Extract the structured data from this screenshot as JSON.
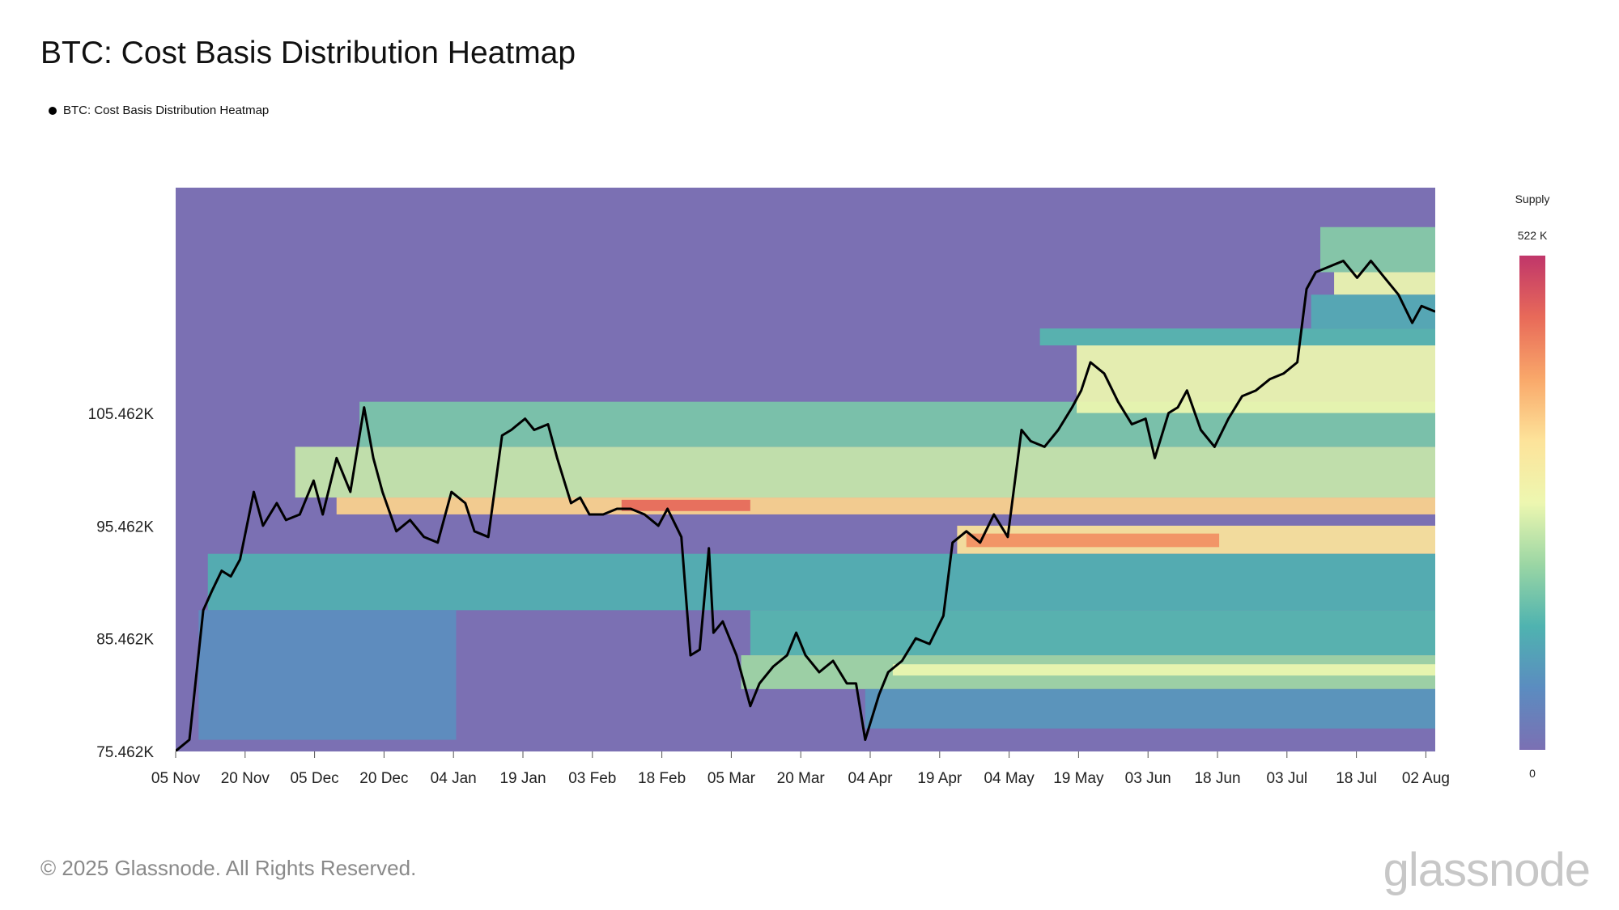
{
  "title": "BTC: Cost Basis Distribution Heatmap",
  "legend": {
    "label": "BTC: Cost Basis Distribution Heatmap",
    "color": "#000000"
  },
  "colorbar": {
    "title": "Supply",
    "max_label": "522 K",
    "min_label": "0",
    "max_value": 522000,
    "min_value": 0,
    "colors": [
      "#7b70b3",
      "#5b8cc0",
      "#4fb3b0",
      "#9bd6a4",
      "#edf7b0",
      "#fde39a",
      "#f9a86a",
      "#e86a59",
      "#c0366a"
    ]
  },
  "footer": {
    "copyright": "© 2025 Glassnode. All Rights Reserved.",
    "brand": "glassnode"
  },
  "chart_data": {
    "type": "heatmap",
    "title": "BTC: Cost Basis Distribution Heatmap",
    "x_ticks": [
      "05 Nov",
      "20 Nov",
      "05 Dec",
      "20 Dec",
      "04 Jan",
      "19 Jan",
      "03 Feb",
      "18 Feb",
      "05 Mar",
      "20 Mar",
      "04 Apr",
      "19 Apr",
      "04 May",
      "19 May",
      "03 Jun",
      "18 Jun",
      "03 Jul",
      "18 Jul",
      "02 Aug"
    ],
    "y_ticks": [
      {
        "label": "75.462K",
        "value": 75462
      },
      {
        "label": "85.462K",
        "value": 85462
      },
      {
        "label": "95.462K",
        "value": 95462
      },
      {
        "label": "105.462K",
        "value": 105462
      }
    ],
    "x_range": [
      "2024-11-05",
      "2025-08-06"
    ],
    "ylim": [
      75462,
      125500
    ],
    "background_color": "#7b70b3",
    "price_series": {
      "name": "BTC: Cost Basis Distribution Heatmap",
      "color": "#000000",
      "x": [
        "2024-11-05",
        "2024-11-08",
        "2024-11-11",
        "2024-11-13",
        "2024-11-15",
        "2024-11-17",
        "2024-11-19",
        "2024-11-22",
        "2024-11-24",
        "2024-11-27",
        "2024-11-29",
        "2024-12-02",
        "2024-12-05",
        "2024-12-07",
        "2024-12-10",
        "2024-12-13",
        "2024-12-16",
        "2024-12-18",
        "2024-12-20",
        "2024-12-23",
        "2024-12-26",
        "2024-12-29",
        "2025-01-01",
        "2025-01-04",
        "2025-01-07",
        "2025-01-09",
        "2025-01-12",
        "2025-01-15",
        "2025-01-17",
        "2025-01-20",
        "2025-01-22",
        "2025-01-25",
        "2025-01-27",
        "2025-01-30",
        "2025-02-01",
        "2025-02-03",
        "2025-02-06",
        "2025-02-09",
        "2025-02-12",
        "2025-02-15",
        "2025-02-18",
        "2025-02-20",
        "2025-02-23",
        "2025-02-25",
        "2025-02-27",
        "2025-03-01",
        "2025-03-02",
        "2025-03-04",
        "2025-03-07",
        "2025-03-10",
        "2025-03-12",
        "2025-03-15",
        "2025-03-18",
        "2025-03-20",
        "2025-03-22",
        "2025-03-25",
        "2025-03-28",
        "2025-03-31",
        "2025-04-02",
        "2025-04-04",
        "2025-04-07",
        "2025-04-09",
        "2025-04-12",
        "2025-04-15",
        "2025-04-18",
        "2025-04-21",
        "2025-04-23",
        "2025-04-26",
        "2025-04-29",
        "2025-05-02",
        "2025-05-05",
        "2025-05-08",
        "2025-05-10",
        "2025-05-13",
        "2025-05-16",
        "2025-05-19",
        "2025-05-21",
        "2025-05-23",
        "2025-05-26",
        "2025-05-29",
        "2025-06-01",
        "2025-06-04",
        "2025-06-06",
        "2025-06-09",
        "2025-06-11",
        "2025-06-13",
        "2025-06-16",
        "2025-06-19",
        "2025-06-22",
        "2025-06-25",
        "2025-06-28",
        "2025-07-01",
        "2025-07-04",
        "2025-07-07",
        "2025-07-09",
        "2025-07-11",
        "2025-07-14",
        "2025-07-17",
        "2025-07-20",
        "2025-07-23",
        "2025-07-26",
        "2025-07-29",
        "2025-08-01",
        "2025-08-03",
        "2025-08-06"
      ],
      "y": [
        75500,
        76500,
        88000,
        89800,
        91500,
        91000,
        92500,
        98500,
        95500,
        97500,
        96000,
        96500,
        99500,
        96500,
        101500,
        98500,
        106000,
        101500,
        98500,
        95000,
        96000,
        94500,
        94000,
        98500,
        97500,
        95000,
        94500,
        103500,
        104000,
        105000,
        104000,
        104500,
        101500,
        97500,
        98000,
        96500,
        96500,
        97000,
        97000,
        96500,
        95500,
        97000,
        94500,
        84000,
        84500,
        93500,
        86000,
        87000,
        84000,
        79500,
        81500,
        83000,
        84000,
        86000,
        84000,
        82500,
        83500,
        81500,
        81500,
        76500,
        80500,
        82500,
        83500,
        85500,
        85000,
        87500,
        94000,
        95000,
        94000,
        96500,
        94500,
        104000,
        103000,
        102500,
        104000,
        106000,
        107500,
        110000,
        109000,
        106500,
        104500,
        105000,
        101500,
        105500,
        106000,
        107500,
        104000,
        102500,
        105000,
        107000,
        107500,
        108500,
        109000,
        110000,
        116500,
        118000,
        118500,
        119000,
        117500,
        119000,
        117500,
        116000,
        113500,
        115000,
        114500
      ]
    },
    "bands": [
      {
        "lo": 96500,
        "hi": 98000,
        "start": "2024-12-10",
        "end": "2025-08-06",
        "intensity": 0.66
      },
      {
        "lo": 96800,
        "hi": 97800,
        "start": "2025-02-10",
        "end": "2025-03-10",
        "intensity": 0.88
      },
      {
        "lo": 93000,
        "hi": 95500,
        "start": "2025-04-24",
        "end": "2025-08-06",
        "intensity": 0.62
      },
      {
        "lo": 93600,
        "hi": 94800,
        "start": "2025-04-26",
        "end": "2025-06-20",
        "intensity": 0.8
      },
      {
        "lo": 98000,
        "hi": 102500,
        "start": "2024-12-01",
        "end": "2025-08-06",
        "intensity": 0.44
      },
      {
        "lo": 102500,
        "hi": 106500,
        "start": "2024-12-15",
        "end": "2025-08-06",
        "intensity": 0.32
      },
      {
        "lo": 105500,
        "hi": 111500,
        "start": "2025-05-20",
        "end": "2025-08-06",
        "intensity": 0.5
      },
      {
        "lo": 111500,
        "hi": 113000,
        "start": "2025-05-12",
        "end": "2025-08-06",
        "intensity": 0.26
      },
      {
        "lo": 116000,
        "hi": 118000,
        "start": "2025-07-15",
        "end": "2025-08-06",
        "intensity": 0.5
      },
      {
        "lo": 118000,
        "hi": 122000,
        "start": "2025-07-12",
        "end": "2025-08-06",
        "intensity": 0.34
      },
      {
        "lo": 113000,
        "hi": 116000,
        "start": "2025-07-10",
        "end": "2025-08-06",
        "intensity": 0.22
      },
      {
        "lo": 88000,
        "hi": 93000,
        "start": "2024-11-12",
        "end": "2025-08-06",
        "intensity": 0.24
      },
      {
        "lo": 84000,
        "hi": 88000,
        "start": "2025-03-10",
        "end": "2025-08-06",
        "intensity": 0.26
      },
      {
        "lo": 81000,
        "hi": 84000,
        "start": "2025-03-08",
        "end": "2025-08-06",
        "intensity": 0.38
      },
      {
        "lo": 82200,
        "hi": 83200,
        "start": "2025-04-10",
        "end": "2025-08-06",
        "intensity": 0.5
      },
      {
        "lo": 77500,
        "hi": 81000,
        "start": "2025-04-04",
        "end": "2025-08-06",
        "intensity": 0.16
      },
      {
        "lo": 76500,
        "hi": 88000,
        "start": "2024-11-10",
        "end": "2025-01-05",
        "intensity": 0.13
      }
    ]
  }
}
